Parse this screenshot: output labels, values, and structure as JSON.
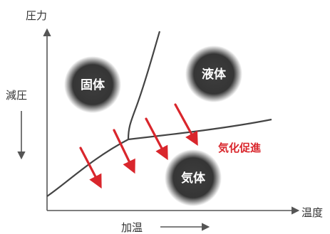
{
  "axes": {
    "y_label": "圧力",
    "x_label": "温度",
    "left_label": "減圧",
    "bottom_label": "加温"
  },
  "phases": {
    "solid": "固体",
    "liquid": "液体",
    "gas": "気体"
  },
  "annotation": {
    "text": "気化促進"
  },
  "colors": {
    "axis": "#555555",
    "curve": "#444444",
    "phase_circle": "#3a3a3a",
    "arrow_red": "#d9262c",
    "annotation_red": "#d9262c"
  }
}
